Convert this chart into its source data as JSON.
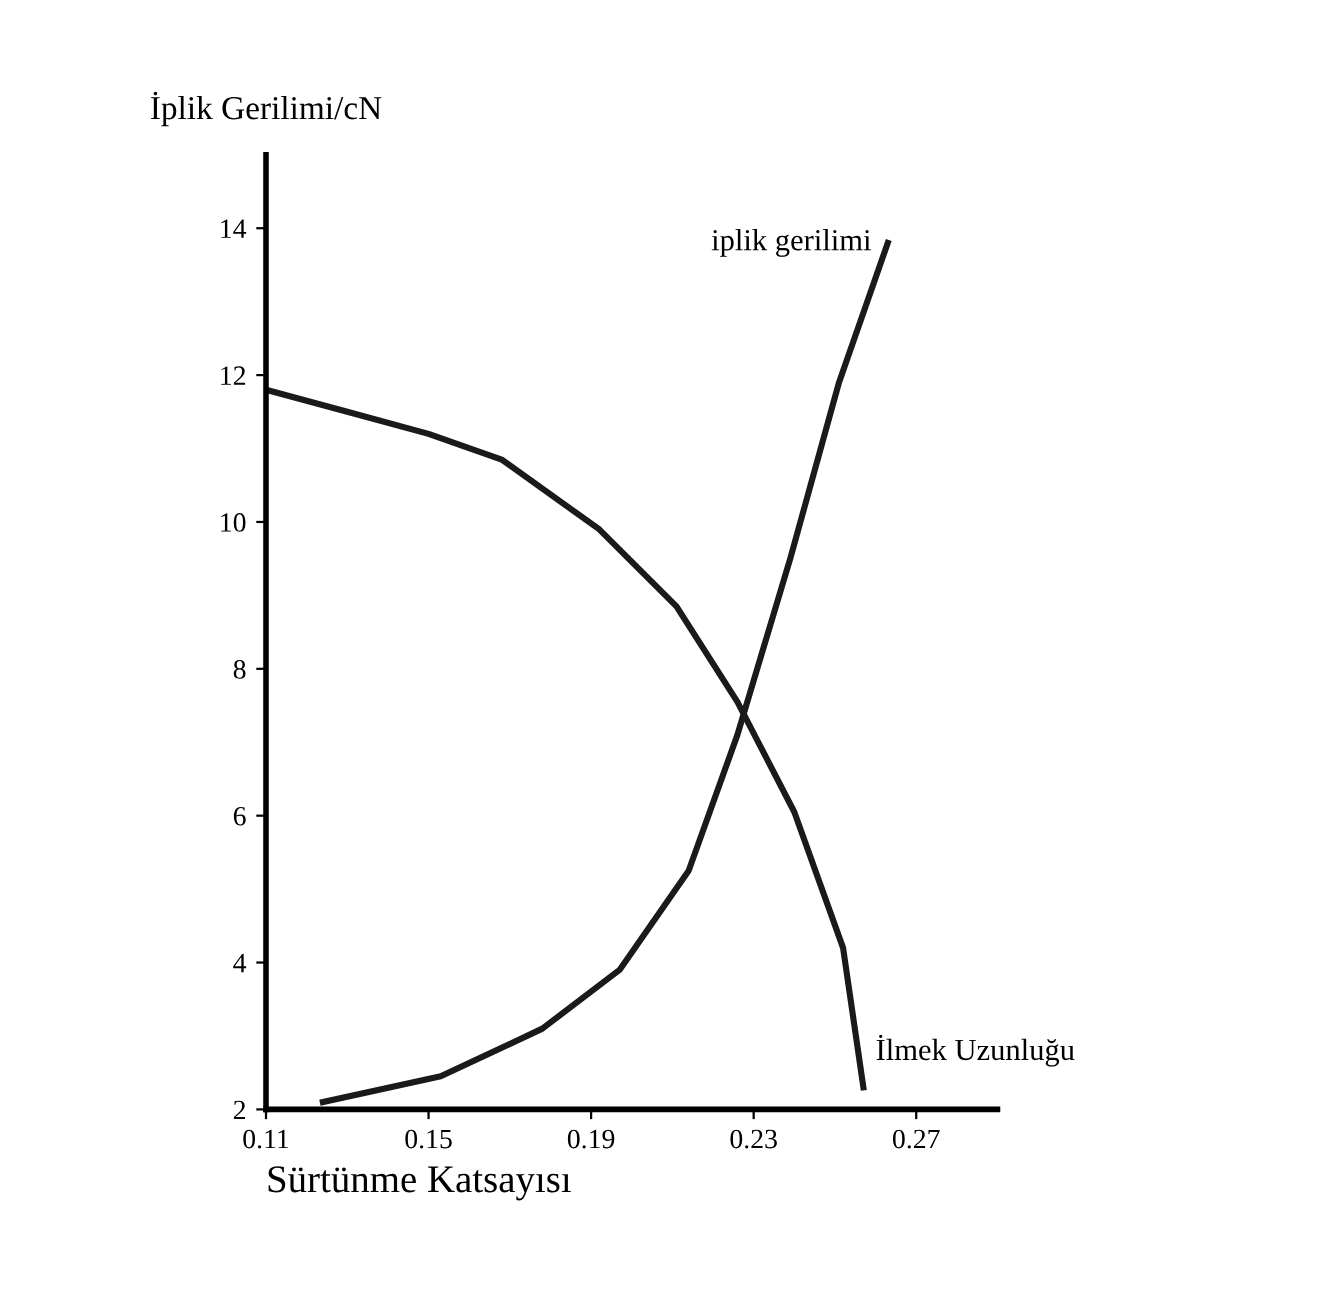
{
  "chart_data": {
    "type": "line",
    "ylabel": "İplik Gerilimi/cN",
    "xlabel": "Sürtünme Katsayısı",
    "xlim": [
      0.11,
      0.29
    ],
    "ylim": [
      2,
      15
    ],
    "xticks": [
      0.11,
      0.15,
      0.19,
      0.23,
      0.27
    ],
    "yticks": [
      2,
      4,
      6,
      8,
      10,
      12,
      14
    ],
    "grid": false,
    "legend": false,
    "marker": "none",
    "line_style": "solid",
    "series": [
      {
        "name": "İlmek Uzunluğu",
        "color": "#1a1a1a",
        "x": [
          0.11,
          0.13,
          0.15,
          0.168,
          0.192,
          0.211,
          0.226,
          0.24,
          0.252,
          0.257
        ],
        "values": [
          11.8,
          11.5,
          11.2,
          10.85,
          9.9,
          8.85,
          7.55,
          6.05,
          4.2,
          2.3
        ]
      },
      {
        "name": "iplik gerilimi",
        "color": "#1a1a1a",
        "x": [
          0.124,
          0.153,
          0.178,
          0.197,
          0.214,
          0.226,
          0.239,
          0.251,
          0.263
        ],
        "values": [
          2.1,
          2.45,
          3.1,
          3.9,
          5.25,
          7.1,
          9.5,
          11.9,
          13.8
        ]
      }
    ]
  }
}
